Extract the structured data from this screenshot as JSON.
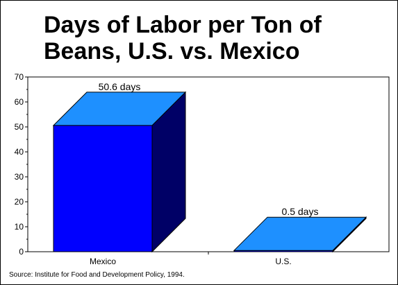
{
  "title_lines": [
    "Days of Labor per Ton of",
    "Beans, U.S. vs. Mexico"
  ],
  "source": "Source: Institute for Food and Development Policy, 1994.",
  "chart_data": {
    "type": "bar",
    "style": "3d",
    "categories": [
      "Mexico",
      "U.S."
    ],
    "values": [
      50.6,
      0.5
    ],
    "data_labels": [
      "50.6 days",
      "0.5 days"
    ],
    "ylim": [
      0,
      70
    ],
    "yticks": [
      0,
      10,
      20,
      30,
      40,
      50,
      60,
      70
    ],
    "xlabel": "",
    "ylabel": "",
    "grid": false,
    "legend": "none",
    "colors": {
      "front": "#0000ff",
      "top": "#1e90ff",
      "side": "#000066",
      "outline": "#000000"
    }
  }
}
